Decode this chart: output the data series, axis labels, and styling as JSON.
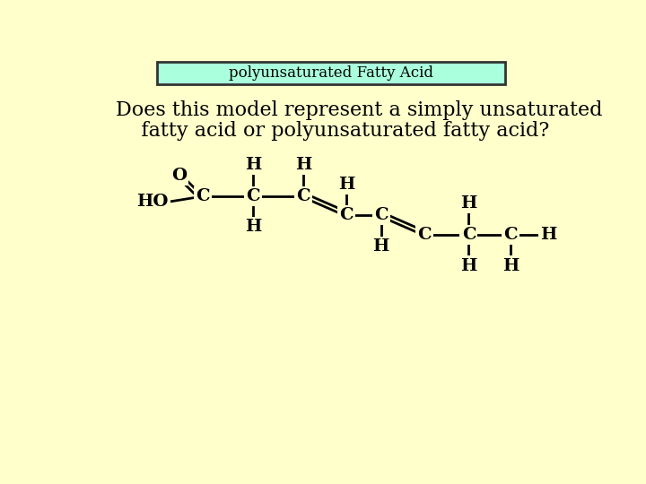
{
  "background_color": "#FFFFCC",
  "title_box_color": "#AAFFDD",
  "title_box_edge_color": "#333333",
  "title_text": "polyunsaturated Fatty Acid",
  "title_fontsize": 12,
  "question_line1": "Does this model represent a simply unsaturated",
  "question_line2": "    fatty acid or polyunsaturated fatty acid?",
  "question_fontsize": 16,
  "chem_fontsize": 14,
  "label_color": "#000000"
}
